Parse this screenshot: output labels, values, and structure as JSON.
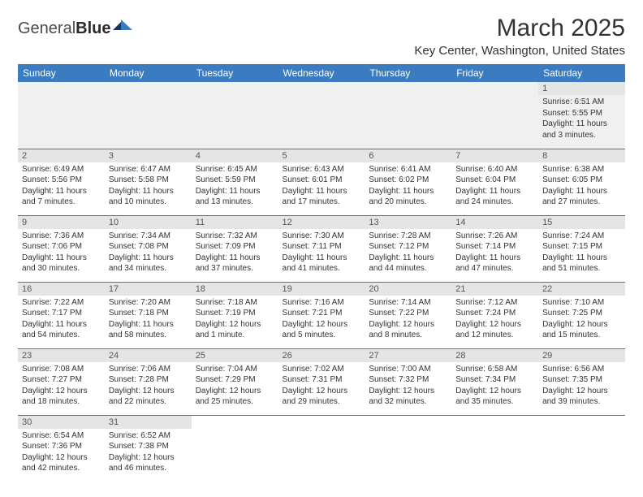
{
  "logo": {
    "text1": "General",
    "text2": "Blue"
  },
  "title": "March 2025",
  "location": "Key Center, Washington, United States",
  "colors": {
    "header_bg": "#3b7bbf",
    "header_text": "#ffffff",
    "daynum_bg": "#e5e5e5",
    "daynum_text": "#555555",
    "border": "#3b7bbf",
    "empty_bg": "#f0f0f0",
    "body_text": "#333333"
  },
  "day_headers": [
    "Sunday",
    "Monday",
    "Tuesday",
    "Wednesday",
    "Thursday",
    "Friday",
    "Saturday"
  ],
  "weeks": [
    [
      null,
      null,
      null,
      null,
      null,
      null,
      {
        "n": "1",
        "sr": "6:51 AM",
        "ss": "5:55 PM",
        "dl": "11 hours and 3 minutes."
      }
    ],
    [
      {
        "n": "2",
        "sr": "6:49 AM",
        "ss": "5:56 PM",
        "dl": "11 hours and 7 minutes."
      },
      {
        "n": "3",
        "sr": "6:47 AM",
        "ss": "5:58 PM",
        "dl": "11 hours and 10 minutes."
      },
      {
        "n": "4",
        "sr": "6:45 AM",
        "ss": "5:59 PM",
        "dl": "11 hours and 13 minutes."
      },
      {
        "n": "5",
        "sr": "6:43 AM",
        "ss": "6:01 PM",
        "dl": "11 hours and 17 minutes."
      },
      {
        "n": "6",
        "sr": "6:41 AM",
        "ss": "6:02 PM",
        "dl": "11 hours and 20 minutes."
      },
      {
        "n": "7",
        "sr": "6:40 AM",
        "ss": "6:04 PM",
        "dl": "11 hours and 24 minutes."
      },
      {
        "n": "8",
        "sr": "6:38 AM",
        "ss": "6:05 PM",
        "dl": "11 hours and 27 minutes."
      }
    ],
    [
      {
        "n": "9",
        "sr": "7:36 AM",
        "ss": "7:06 PM",
        "dl": "11 hours and 30 minutes."
      },
      {
        "n": "10",
        "sr": "7:34 AM",
        "ss": "7:08 PM",
        "dl": "11 hours and 34 minutes."
      },
      {
        "n": "11",
        "sr": "7:32 AM",
        "ss": "7:09 PM",
        "dl": "11 hours and 37 minutes."
      },
      {
        "n": "12",
        "sr": "7:30 AM",
        "ss": "7:11 PM",
        "dl": "11 hours and 41 minutes."
      },
      {
        "n": "13",
        "sr": "7:28 AM",
        "ss": "7:12 PM",
        "dl": "11 hours and 44 minutes."
      },
      {
        "n": "14",
        "sr": "7:26 AM",
        "ss": "7:14 PM",
        "dl": "11 hours and 47 minutes."
      },
      {
        "n": "15",
        "sr": "7:24 AM",
        "ss": "7:15 PM",
        "dl": "11 hours and 51 minutes."
      }
    ],
    [
      {
        "n": "16",
        "sr": "7:22 AM",
        "ss": "7:17 PM",
        "dl": "11 hours and 54 minutes."
      },
      {
        "n": "17",
        "sr": "7:20 AM",
        "ss": "7:18 PM",
        "dl": "11 hours and 58 minutes."
      },
      {
        "n": "18",
        "sr": "7:18 AM",
        "ss": "7:19 PM",
        "dl": "12 hours and 1 minute."
      },
      {
        "n": "19",
        "sr": "7:16 AM",
        "ss": "7:21 PM",
        "dl": "12 hours and 5 minutes."
      },
      {
        "n": "20",
        "sr": "7:14 AM",
        "ss": "7:22 PM",
        "dl": "12 hours and 8 minutes."
      },
      {
        "n": "21",
        "sr": "7:12 AM",
        "ss": "7:24 PM",
        "dl": "12 hours and 12 minutes."
      },
      {
        "n": "22",
        "sr": "7:10 AM",
        "ss": "7:25 PM",
        "dl": "12 hours and 15 minutes."
      }
    ],
    [
      {
        "n": "23",
        "sr": "7:08 AM",
        "ss": "7:27 PM",
        "dl": "12 hours and 18 minutes."
      },
      {
        "n": "24",
        "sr": "7:06 AM",
        "ss": "7:28 PM",
        "dl": "12 hours and 22 minutes."
      },
      {
        "n": "25",
        "sr": "7:04 AM",
        "ss": "7:29 PM",
        "dl": "12 hours and 25 minutes."
      },
      {
        "n": "26",
        "sr": "7:02 AM",
        "ss": "7:31 PM",
        "dl": "12 hours and 29 minutes."
      },
      {
        "n": "27",
        "sr": "7:00 AM",
        "ss": "7:32 PM",
        "dl": "12 hours and 32 minutes."
      },
      {
        "n": "28",
        "sr": "6:58 AM",
        "ss": "7:34 PM",
        "dl": "12 hours and 35 minutes."
      },
      {
        "n": "29",
        "sr": "6:56 AM",
        "ss": "7:35 PM",
        "dl": "12 hours and 39 minutes."
      }
    ],
    [
      {
        "n": "30",
        "sr": "6:54 AM",
        "ss": "7:36 PM",
        "dl": "12 hours and 42 minutes."
      },
      {
        "n": "31",
        "sr": "6:52 AM",
        "ss": "7:38 PM",
        "dl": "12 hours and 46 minutes."
      },
      null,
      null,
      null,
      null,
      null
    ]
  ],
  "labels": {
    "sunrise": "Sunrise:",
    "sunset": "Sunset:",
    "daylight": "Daylight:"
  }
}
